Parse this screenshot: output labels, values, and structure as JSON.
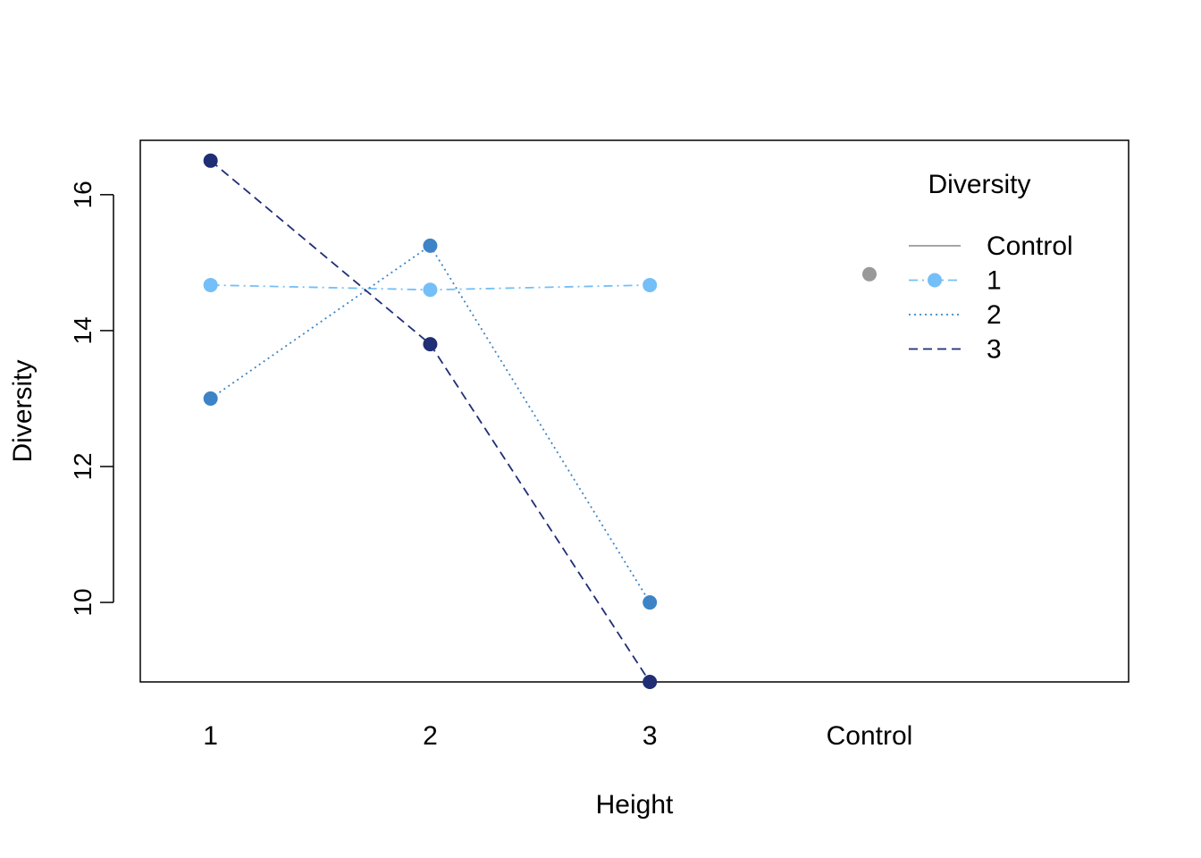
{
  "chart_data": {
    "type": "line",
    "xlabel": "Height",
    "ylabel": "Diversity",
    "x_categories": [
      "1",
      "2",
      "3",
      "Control"
    ],
    "xlim": [
      0.68,
      5.18
    ],
    "ylim": [
      8.83,
      16.8
    ],
    "y_ticks": [
      10,
      12,
      14,
      16
    ],
    "grid": false,
    "legend": {
      "title": "Diversity",
      "position": "top-right",
      "entries": [
        "Control",
        "1",
        "2",
        "3"
      ]
    },
    "series": [
      {
        "name": "Control",
        "color": "#999999",
        "line_style": "solid",
        "marker_in_legend": false,
        "points": [
          {
            "x": "Control",
            "y": 14.83
          }
        ]
      },
      {
        "name": "1",
        "color": "#74bff7",
        "line_style": "dashdot",
        "marker_in_legend": true,
        "points": [
          {
            "x": "1",
            "y": 14.67
          },
          {
            "x": "2",
            "y": 14.6
          },
          {
            "x": "3",
            "y": 14.67
          }
        ]
      },
      {
        "name": "2",
        "color": "#3d84c6",
        "line_style": "dotted",
        "marker_in_legend": false,
        "points": [
          {
            "x": "1",
            "y": 13.0
          },
          {
            "x": "2",
            "y": 15.25
          },
          {
            "x": "3",
            "y": 10.0
          }
        ]
      },
      {
        "name": "3",
        "color": "#1f2e75",
        "line_style": "dashed",
        "marker_in_legend": false,
        "points": [
          {
            "x": "1",
            "y": 16.5
          },
          {
            "x": "2",
            "y": 13.8
          },
          {
            "x": "3",
            "y": 8.83
          }
        ]
      }
    ]
  }
}
